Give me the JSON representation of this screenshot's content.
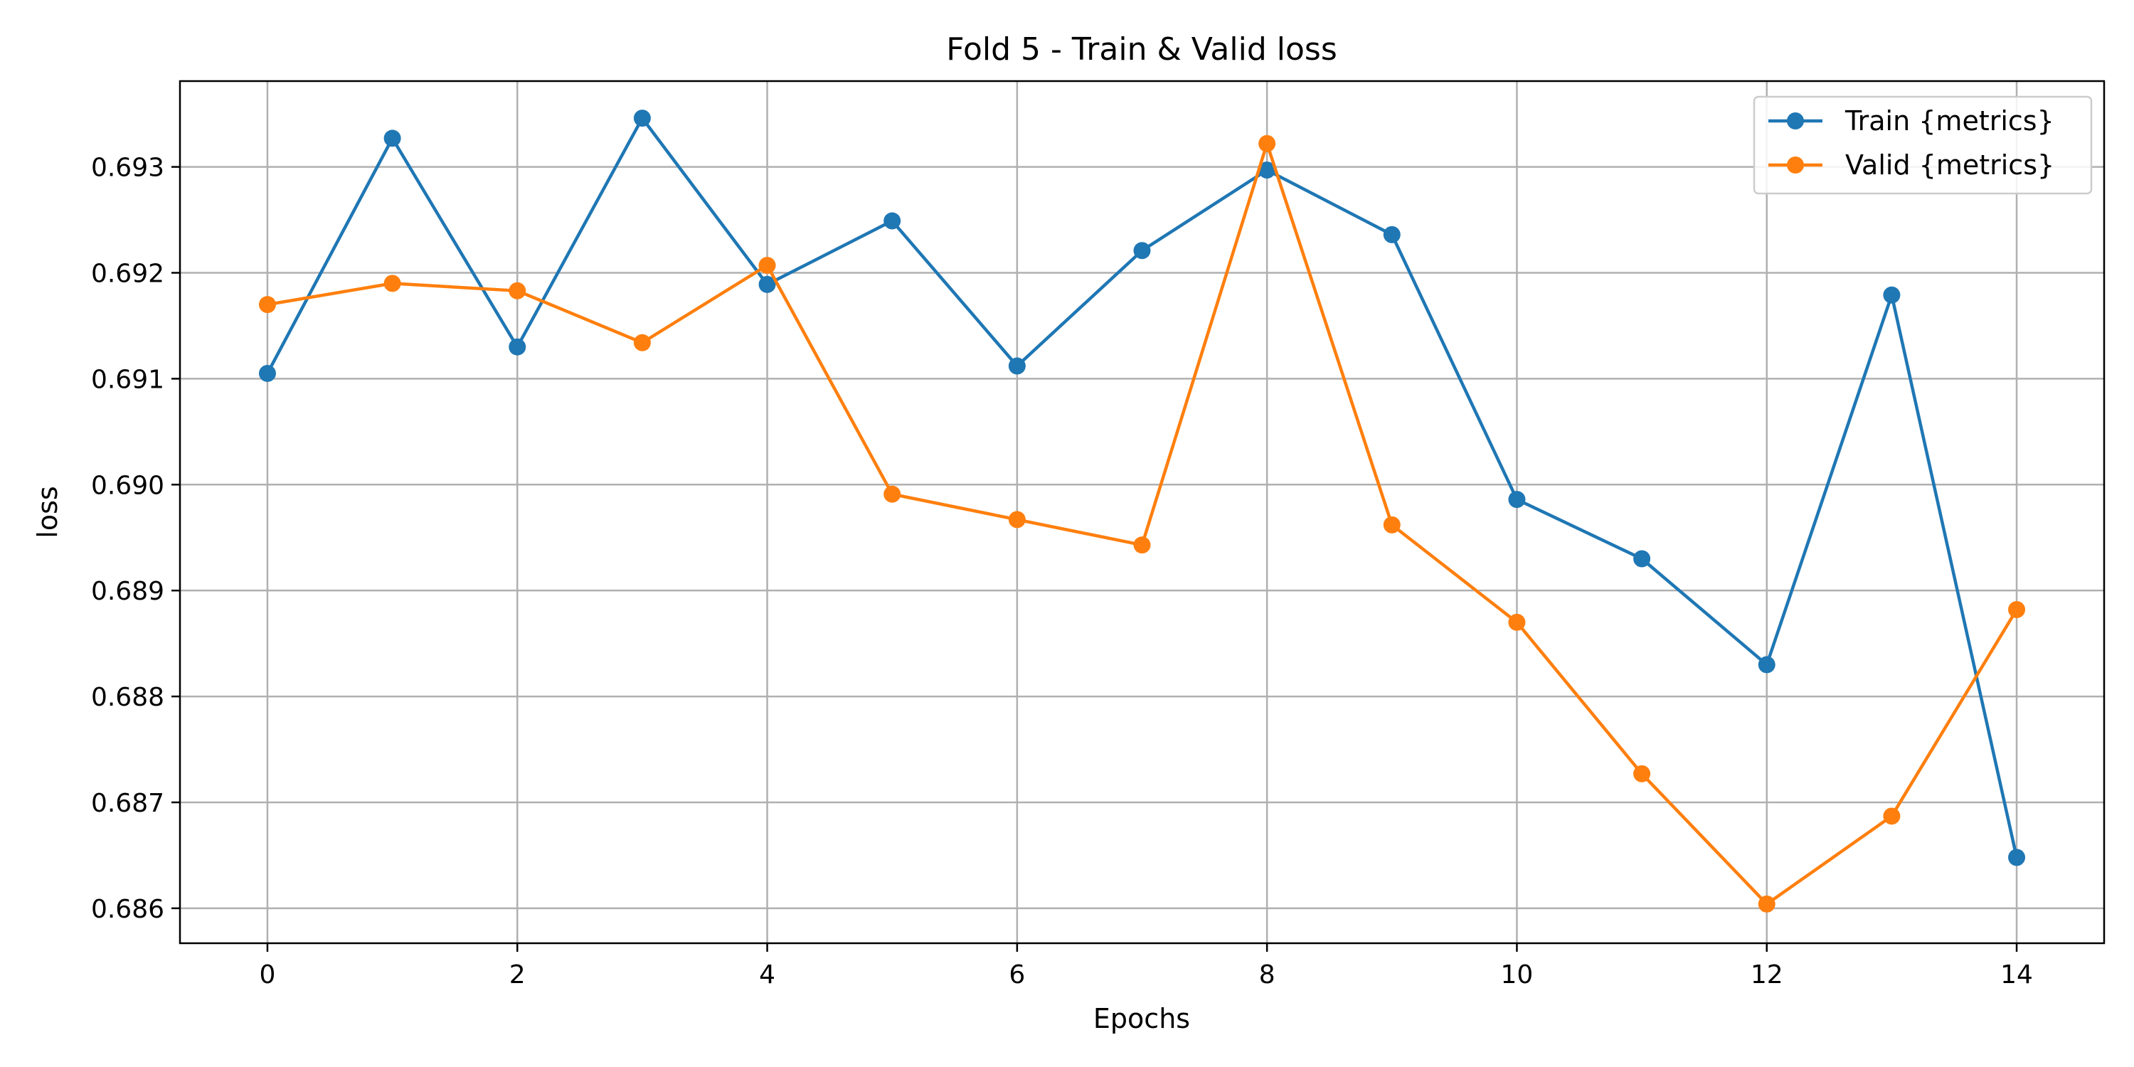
{
  "chart_data": {
    "type": "line",
    "title": "Fold 5 - Train & Valid loss",
    "xlabel": "Epochs",
    "ylabel": "loss",
    "x": [
      0,
      1,
      2,
      3,
      4,
      5,
      6,
      7,
      8,
      9,
      10,
      11,
      12,
      13,
      14
    ],
    "xlim": [
      -0.7,
      14.7
    ],
    "ylim": [
      0.68567,
      0.69381
    ],
    "xticks": [
      0,
      2,
      4,
      6,
      8,
      10,
      12,
      14
    ],
    "xtick_labels": [
      "0",
      "2",
      "4",
      "6",
      "8",
      "10",
      "12",
      "14"
    ],
    "yticks": [
      0.686,
      0.687,
      0.688,
      0.689,
      0.69,
      0.691,
      0.692,
      0.693
    ],
    "ytick_labels": [
      "0.686",
      "0.687",
      "0.688",
      "0.689",
      "0.690",
      "0.691",
      "0.692",
      "0.693"
    ],
    "grid": true,
    "legend_position": "top-right",
    "series": [
      {
        "name": "Train {metrics}",
        "color": "#1f77b4",
        "marker": "circle",
        "values": [
          0.69105,
          0.69327,
          0.6913,
          0.69346,
          0.69189,
          0.69249,
          0.69112,
          0.69221,
          0.69297,
          0.69236,
          0.68986,
          0.6893,
          0.6883,
          0.69179,
          0.68648
        ]
      },
      {
        "name": "Valid {metrics}",
        "color": "#ff7f0e",
        "marker": "circle",
        "values": [
          0.6917,
          0.6919,
          0.69183,
          0.69134,
          0.69207,
          0.68991,
          0.68967,
          0.68943,
          0.69322,
          0.68962,
          0.6887,
          0.68727,
          0.68604,
          0.68687,
          0.68882
        ]
      }
    ]
  }
}
